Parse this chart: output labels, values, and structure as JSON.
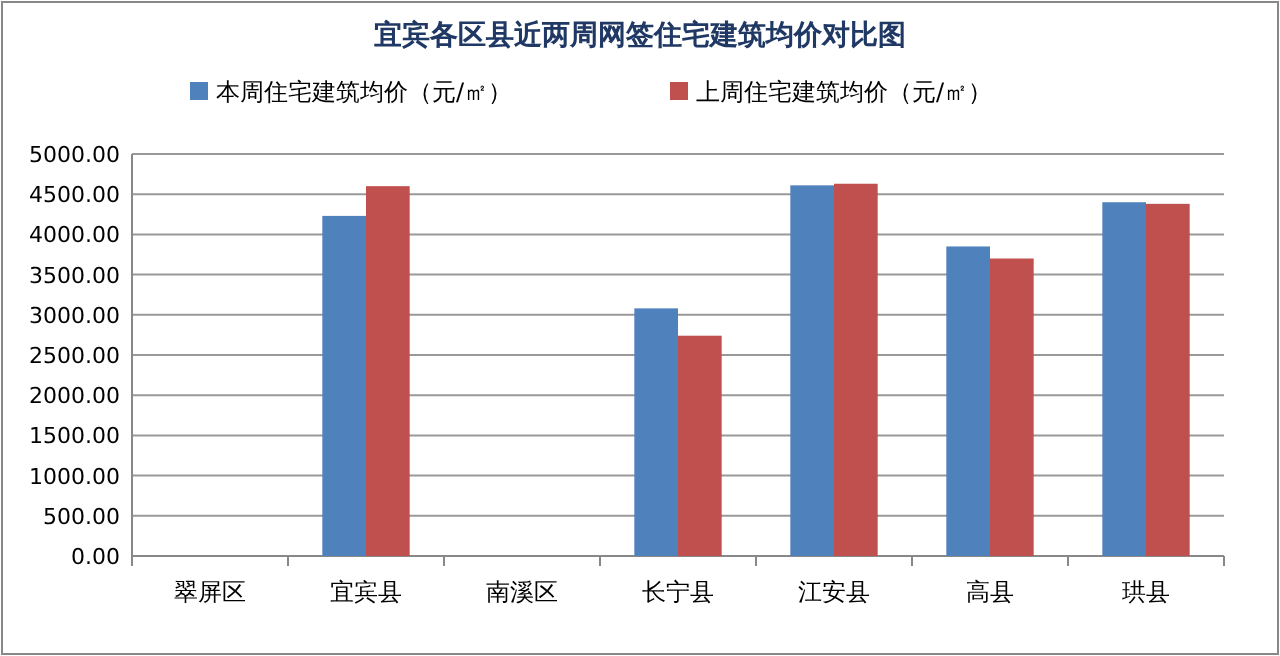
{
  "chart_data": {
    "type": "bar",
    "title": "宜宾各区县近两周网签住宅建筑均价对比图",
    "categories": [
      "翠屏区",
      "宜宾县",
      "南溪区",
      "长宁县",
      "江安县",
      "高县",
      "珙县"
    ],
    "series": [
      {
        "name": "本周住宅建筑均价（元/㎡）",
        "color": "#4f81bd",
        "values": [
          null,
          4230,
          null,
          3080,
          4610,
          3850,
          4400
        ]
      },
      {
        "name": "上周住宅建筑均价（元/㎡）",
        "color": "#c0504d",
        "values": [
          null,
          4600,
          null,
          2740,
          4630,
          3700,
          4380
        ]
      }
    ],
    "ylim": [
      0,
      5000
    ],
    "yticks": [
      {
        "value": 0,
        "label": "0.00"
      },
      {
        "value": 500,
        "label": "500.00"
      },
      {
        "value": 1000,
        "label": "1000.00"
      },
      {
        "value": 1500,
        "label": "1500.00"
      },
      {
        "value": 2000,
        "label": "2000.00"
      },
      {
        "value": 2500,
        "label": "2500.00"
      },
      {
        "value": 3000,
        "label": "3000.00"
      },
      {
        "value": 3500,
        "label": "3500.00"
      },
      {
        "value": 4000,
        "label": "4000.00"
      },
      {
        "value": 4500,
        "label": "4500.00"
      },
      {
        "value": 5000,
        "label": "5000.00"
      }
    ],
    "grid": "y",
    "legend": "top"
  }
}
